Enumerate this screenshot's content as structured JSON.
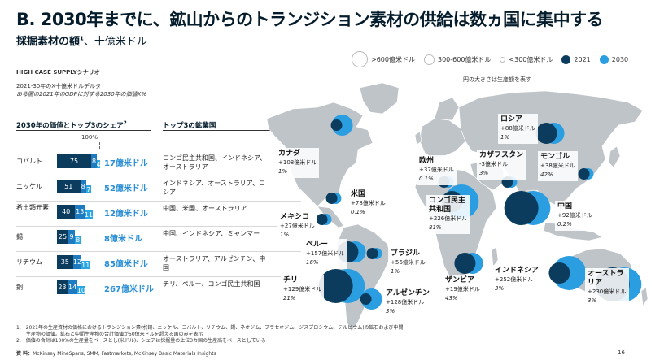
{
  "title": "B. 2030年までに、鉱山からのトランジション素材の供給は数ヵ国に集中する",
  "subtitle": {
    "main": "採掘素材の額",
    "sup": "1",
    "unit": "、十億米ドル"
  },
  "scenario": "HIGH CASE SUPPLYシナリオ",
  "delta_note": "2021-30年のX十億米ドルデルタ",
  "gdp_note": "ある国の2021年のGDPに対する2030年の価値X%",
  "legend": {
    "size_large": ">600億米ドル",
    "size_medium": "300-600億米ドル",
    "size_small": "<300億米ドル",
    "year_2021": "2021",
    "year_2030": "2030"
  },
  "circle_note": "円の大きさは生産額を表す",
  "table": {
    "header_share": "2030年の価値とトップ3のシェア",
    "header_share_sup": "2",
    "header_countries": "トップ3の鉱業国",
    "pct_label": "100%"
  },
  "chart_data": [
    {
      "type": "bar",
      "title": "2030年の価値とトップ3のシェア",
      "stacked": true,
      "legend": [],
      "categories": [
        "コバルト",
        "ニッケル",
        "希土類元素",
        "錫",
        "リチウム",
        "銅"
      ],
      "series": [
        {
          "values": [
            75,
            51,
            40,
            25,
            35,
            23
          ]
        },
        {
          "values": [
            8,
            8,
            13,
            9,
            12,
            14
          ]
        },
        {
          "values": [
            4,
            7,
            11,
            8,
            11,
            10
          ]
        }
      ],
      "value_labels": [
        "17億米ドル",
        "52億米ドル",
        "12億米ドル",
        "8億米ドル",
        "85億米ドル",
        "267億米ドル"
      ],
      "top3": [
        "コンゴ民主共和国、インドネシア、オーストラリア",
        "インドネシア、オーストラリア、ロシア",
        "中国、米国、オーストラリア",
        "中国、インドネシア、ミャンマー",
        "オーストラリア、アルゼンチン、中国",
        "チリ、ペルー、コンゴ民主共和国"
      ],
      "ylim": [
        0,
        100
      ],
      "colors": [
        "#0b3c5d",
        "#1f7bbf",
        "#2aa6e3"
      ]
    },
    {
      "type": "scatter",
      "title": "",
      "legend": [
        "2021",
        "2030"
      ],
      "colors": {
        "y2021": "#0b3c5d",
        "y2030": "#2a9ee0",
        "land": "#bfc4c9"
      },
      "regions": [
        {
          "name": "カナダ",
          "delta": "+108億米ドル",
          "pct": "1%",
          "size_2021": "small",
          "size_2030": "medium"
        },
        {
          "name": "米国",
          "delta": "+78億米ドル",
          "pct": "0.1%",
          "size_2021": "small",
          "size_2030": "small"
        },
        {
          "name": "メキシコ",
          "delta": "+27億米ドル",
          "pct": "1%",
          "size_2021": "small",
          "size_2030": "small"
        },
        {
          "name": "ペルー",
          "delta": "+157億米ドル",
          "pct": "16%",
          "size_2021": "medium",
          "size_2030": "medium"
        },
        {
          "name": "チリ",
          "delta": "+129億米ドル",
          "pct": "21%",
          "size_2021": "large",
          "size_2030": "large"
        },
        {
          "name": "ブラジル",
          "delta": "+56億米ドル",
          "pct": "1%",
          "size_2021": "small",
          "size_2030": "small"
        },
        {
          "name": "アルゼンチン",
          "delta": "+128億米ドル",
          "pct": "3%",
          "size_2021": "small",
          "size_2030": "medium"
        },
        {
          "name": "欧州",
          "delta": "+37億米ドル",
          "pct": "0.1%",
          "size_2021": "small",
          "size_2030": "small"
        },
        {
          "name": "コンゴ民主共和国",
          "delta": "+226億米ドル",
          "pct": "81%",
          "size_2021": "medium",
          "size_2030": "large"
        },
        {
          "name": "ザンビア",
          "delta": "+19億米ドル",
          "pct": "43%",
          "size_2021": "medium",
          "size_2030": "medium"
        },
        {
          "name": "カザフスタン",
          "delta": "-3億米ドル",
          "pct": "3%",
          "size_2021": "small",
          "size_2030": "small"
        },
        {
          "name": "ロシア",
          "delta": "+88億米ドル",
          "pct": "1%",
          "size_2021": "medium",
          "size_2030": "medium"
        },
        {
          "name": "モンゴル",
          "delta": "+38億米ドル",
          "pct": "42%",
          "size_2021": "small",
          "size_2030": "small"
        },
        {
          "name": "中国",
          "delta": "+92億米ドル",
          "pct": "0.2%",
          "size_2021": "large",
          "size_2030": "large"
        },
        {
          "name": "インドネシア",
          "delta": "+252億米ドル",
          "pct": "3%",
          "size_2021": "medium",
          "size_2030": "large"
        },
        {
          "name": "オーストラリア",
          "delta": "+230億米ドル",
          "pct": "3%",
          "size_2021": "large",
          "size_2030": "large"
        }
      ]
    }
  ],
  "footnotes": [
    "1.　2021年の生産資材の価格におけるトランジション素材(銅、ニッケル、コバルト、リチウム、錫、ネオジム、プラセオジム、ジスプロシウム、テルビウム)の鉱石および中間",
    "　　生産物の価値。鉱石と中間生産物の合計価値が50億米ドルを超える国のみを表示",
    "2.　価値の合計は100%の生産量をベースとし(米ドル)、シェアは採掘量の上位3カ国の生産高をベースとしている"
  ],
  "source": {
    "label": "資 料：",
    "text": "McKinsey MineSpans, SMM, Fastmarkets, McKinsey Basic Materials Insights"
  },
  "page_number": "16"
}
